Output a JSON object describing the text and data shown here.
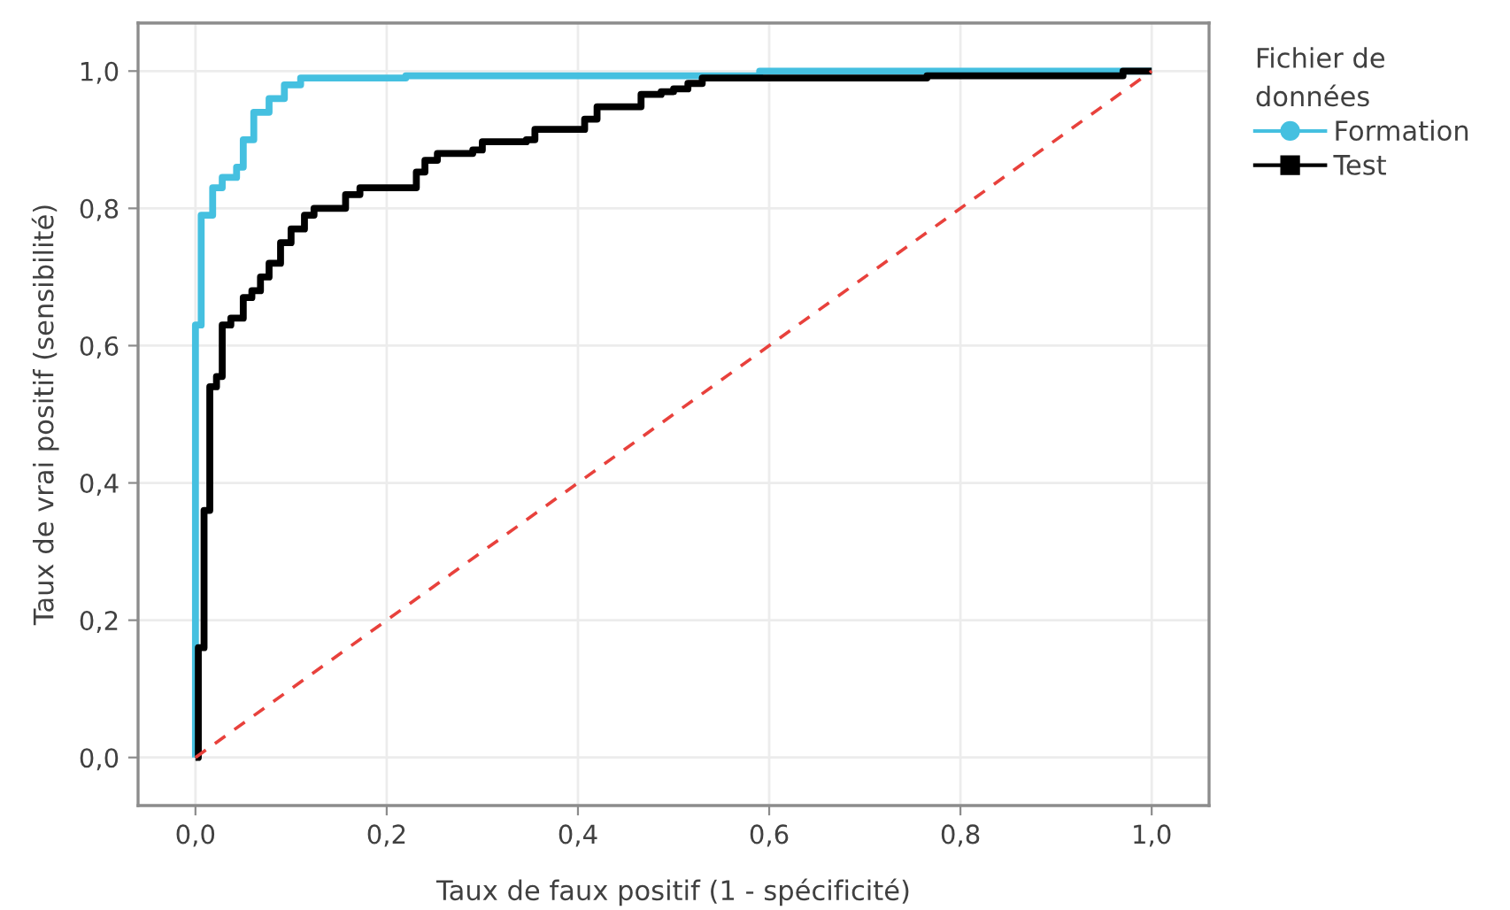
{
  "chart_data": {
    "type": "step",
    "xlabel": "Taux de faux positif (1 - spécificité)",
    "ylabel": "Taux de vrai positif (sensibilité)",
    "legend_title": "Fichier de\ndonnées",
    "series": [
      {
        "name": "Formation",
        "color": "#45c0e0",
        "x": [
          0,
          0,
          0.006,
          0.018,
          0.028,
          0.043,
          0.05,
          0.061,
          0.077,
          0.093,
          0.11,
          0.22,
          0.59,
          1.0
        ],
        "values": [
          0,
          0.63,
          0.79,
          0.83,
          0.845,
          0.86,
          0.9,
          0.94,
          0.96,
          0.98,
          0.99,
          0.993,
          1.0,
          1.0
        ]
      },
      {
        "name": "Test",
        "color": "#000000",
        "x": [
          0,
          0.003,
          0.009,
          0.015,
          0.022,
          0.028,
          0.037,
          0.05,
          0.059,
          0.068,
          0.077,
          0.089,
          0.1,
          0.114,
          0.124,
          0.157,
          0.172,
          0.231,
          0.24,
          0.253,
          0.29,
          0.3,
          0.346,
          0.355,
          0.407,
          0.42,
          0.466,
          0.487,
          0.5,
          0.515,
          0.53,
          0.765,
          0.97,
          1.0
        ],
        "values": [
          0,
          0.16,
          0.36,
          0.54,
          0.555,
          0.63,
          0.64,
          0.67,
          0.68,
          0.7,
          0.72,
          0.75,
          0.77,
          0.79,
          0.8,
          0.82,
          0.83,
          0.853,
          0.87,
          0.88,
          0.885,
          0.897,
          0.9,
          0.915,
          0.93,
          0.948,
          0.966,
          0.97,
          0.974,
          0.982,
          0.99,
          0.993,
          1.0,
          1.0
        ]
      },
      {
        "type": "line",
        "color": "#e8413c",
        "line_style": "dashed",
        "x": [
          0,
          1
        ],
        "values": [
          0,
          1
        ]
      }
    ],
    "xlim": [
      -0.06,
      1.06
    ],
    "ylim": [
      -0.07,
      1.07
    ],
    "xticks": [
      {
        "value": 0,
        "label": "0,0"
      },
      {
        "value": 0.2,
        "label": "0,2"
      },
      {
        "value": 0.4,
        "label": "0,4"
      },
      {
        "value": 0.6,
        "label": "0,6"
      },
      {
        "value": 0.8,
        "label": "0,8"
      },
      {
        "value": 1,
        "label": "1,0"
      }
    ],
    "yticks": [
      {
        "value": 0,
        "label": "0,0"
      },
      {
        "value": 0.2,
        "label": "0,2"
      },
      {
        "value": 0.4,
        "label": "0,4"
      },
      {
        "value": 0.6,
        "label": "0,6"
      },
      {
        "value": 0.8,
        "label": "0,8"
      },
      {
        "value": 1,
        "label": "1,0"
      }
    ],
    "grid": true,
    "legend": "right"
  }
}
